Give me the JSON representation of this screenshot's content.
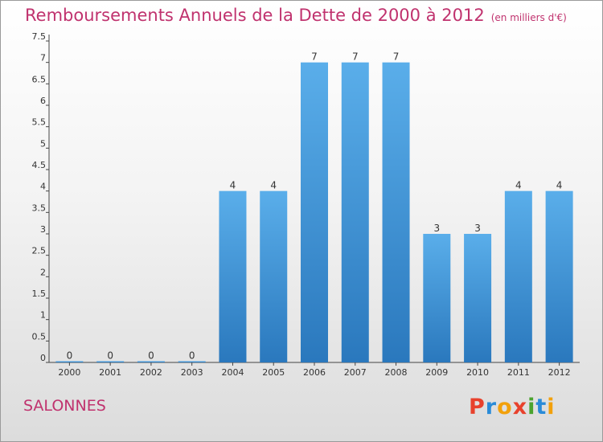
{
  "header": {
    "title": "Remboursements Annuels de la Dette de 2000 à 2012",
    "unit": "(en milliers d'€)"
  },
  "footer": {
    "commune": "SALONNES",
    "logo": {
      "text": "Proxiti",
      "letters": [
        {
          "char": "P",
          "color": "#e8412c"
        },
        {
          "char": "r",
          "color": "#2a8bd8"
        },
        {
          "char": "o",
          "color": "#f2a10c"
        },
        {
          "char": "x",
          "color": "#e8412c"
        },
        {
          "char": "i",
          "color": "#4aa32e"
        },
        {
          "char": "t",
          "color": "#2a8bd8"
        },
        {
          "char": "i",
          "color": "#f2a10c"
        }
      ]
    }
  },
  "chart_data": {
    "type": "bar",
    "title": "Remboursements Annuels de la Dette de 2000 à 2012",
    "subtitle": "(en milliers d'€)",
    "xlabel": "",
    "ylabel": "",
    "categories": [
      "2000",
      "2001",
      "2002",
      "2003",
      "2004",
      "2005",
      "2006",
      "2007",
      "2008",
      "2009",
      "2010",
      "2011",
      "2012"
    ],
    "values": [
      0,
      0,
      0,
      0,
      4,
      4,
      7,
      7,
      7,
      3,
      3,
      4,
      4
    ],
    "ylim": [
      0,
      7.5
    ],
    "yticks": [
      "0",
      "0.5",
      "1",
      "1.5",
      "2",
      "2.5",
      "3",
      "3.5",
      "4",
      "4.5",
      "5",
      "5.5",
      "6",
      "6.5",
      "7",
      "7.5"
    ],
    "grid": false,
    "bar_color": "#3a8fd6"
  }
}
